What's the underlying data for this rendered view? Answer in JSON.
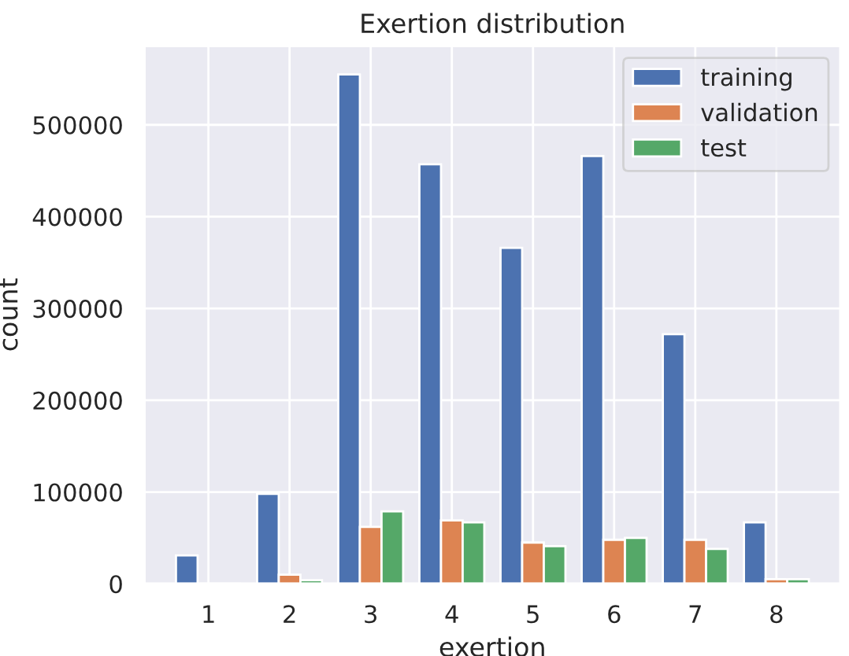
{
  "chart_data": {
    "type": "bar",
    "title": "Exertion distribution",
    "xlabel": "exertion",
    "ylabel": "count",
    "categories": [
      "1",
      "2",
      "3",
      "4",
      "5",
      "6",
      "7",
      "8"
    ],
    "series": [
      {
        "name": "training",
        "color": "#4c72b0",
        "values": [
          31000,
          98000,
          555000,
          457000,
          366000,
          466000,
          272000,
          67000
        ]
      },
      {
        "name": "validation",
        "color": "#dd8452",
        "values": [
          null,
          10000,
          62000,
          69000,
          45000,
          48000,
          48000,
          5000
        ]
      },
      {
        "name": "test",
        "color": "#55a868",
        "values": [
          null,
          4000,
          79000,
          67000,
          41000,
          50000,
          38000,
          5000
        ]
      }
    ],
    "ylim": [
      0,
      586000
    ],
    "yticks": [
      0,
      100000,
      200000,
      300000,
      400000,
      500000
    ],
    "grid": true,
    "legend": "top right"
  }
}
